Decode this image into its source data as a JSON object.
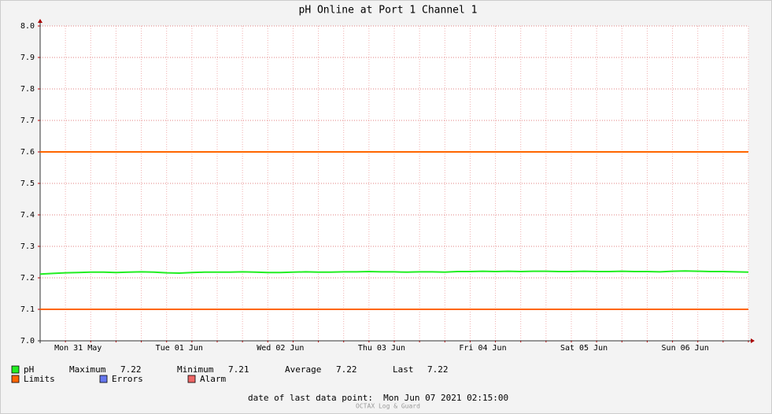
{
  "chart_data": {
    "type": "line",
    "title": "pH Online at Port 1 Channel 1",
    "categories": [
      null,
      null,
      null,
      "Mon 31 May",
      null,
      null,
      null,
      null,
      null,
      null,
      null,
      "Tue 01 Jun",
      null,
      null,
      null,
      null,
      null,
      null,
      null,
      "Wed 02 Jun",
      null,
      null,
      null,
      null,
      null,
      null,
      null,
      "Thu 03 Jun",
      null,
      null,
      null,
      null,
      null,
      null,
      null,
      "Fri 04 Jun",
      null,
      null,
      null,
      null,
      null,
      null,
      null,
      "Sat 05 Jun",
      null,
      null,
      null,
      null,
      null,
      null,
      null,
      "Sun 06 Jun",
      null,
      null,
      null,
      null,
      null
    ],
    "series": [
      {
        "name": "pH",
        "color": "#22ee22",
        "values": [
          7.212,
          7.214,
          7.216,
          7.217,
          7.218,
          7.218,
          7.217,
          7.218,
          7.219,
          7.218,
          7.216,
          7.215,
          7.217,
          7.218,
          7.218,
          7.218,
          7.219,
          7.218,
          7.217,
          7.217,
          7.218,
          7.219,
          7.218,
          7.218,
          7.219,
          7.219,
          7.22,
          7.219,
          7.219,
          7.218,
          7.219,
          7.219,
          7.218,
          7.22,
          7.22,
          7.221,
          7.22,
          7.221,
          7.22,
          7.221,
          7.221,
          7.22,
          7.22,
          7.221,
          7.22,
          7.22,
          7.221,
          7.22,
          7.22,
          7.219,
          7.221,
          7.222,
          7.221,
          7.22,
          7.22,
          7.219,
          7.218
        ]
      }
    ],
    "limits": {
      "name": "Limits",
      "color": "#ff6600",
      "values": [
        7.1,
        7.6
      ]
    },
    "legend_extra": [
      {
        "name": "Errors",
        "color": "#6677ee"
      },
      {
        "name": "Alarm",
        "color": "#ee6666"
      }
    ],
    "stats": [
      {
        "label": "Maximum",
        "value": 7.22
      },
      {
        "label": "Minimum",
        "value": 7.21
      },
      {
        "label": "Average",
        "value": 7.22
      },
      {
        "label": "Last",
        "value": 7.22
      }
    ],
    "ylim": [
      7.0,
      8.0
    ],
    "yticks": [
      {
        "value": 7.0,
        "label": "7.0"
      },
      7.1,
      7.2,
      7.3,
      7.4,
      7.5,
      7.6,
      7.7,
      7.8,
      7.9,
      {
        "value": 8.0,
        "label": "8.0"
      }
    ],
    "grid": true,
    "footer": "date of last data point:  Mon Jun 07 2021 02:15:00",
    "watermark": "OCTAX Log & Guard"
  }
}
